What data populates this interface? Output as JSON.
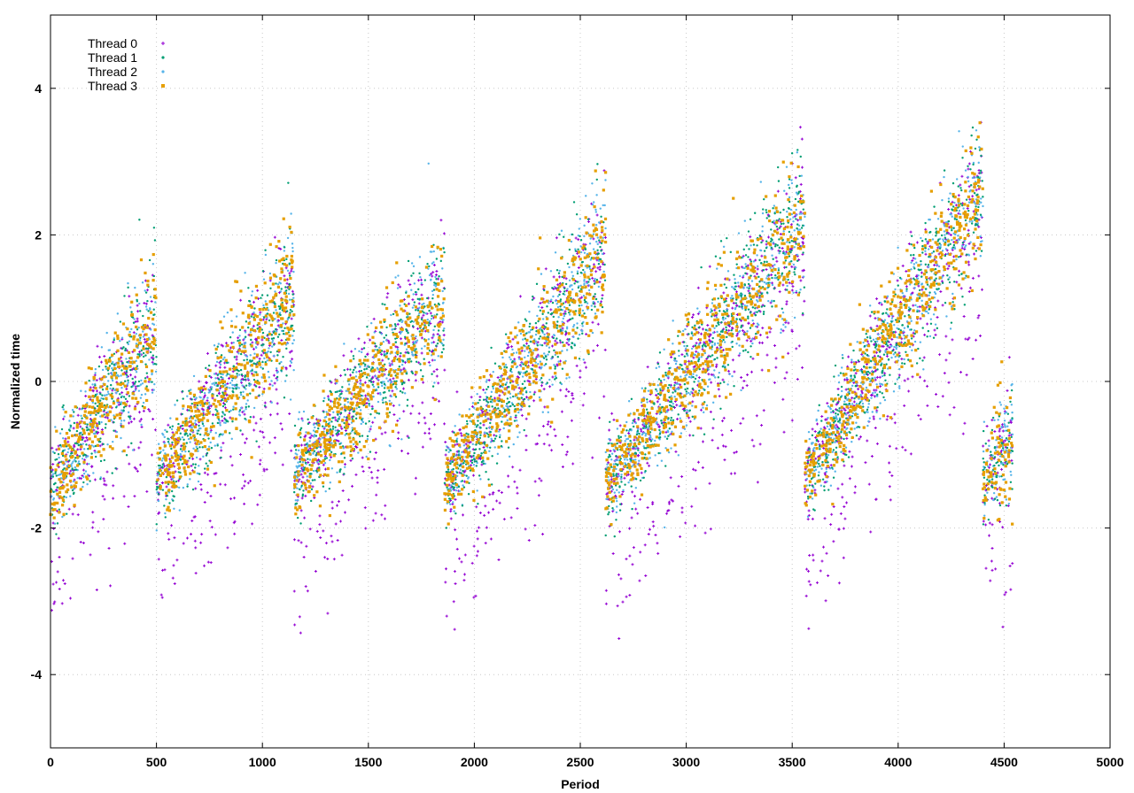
{
  "chart_data": {
    "type": "scatter",
    "title": "",
    "xlabel": "Period",
    "ylabel": "Normalized time",
    "xlim": [
      0,
      5000
    ],
    "ylim": [
      -5,
      5
    ],
    "xticks": [
      0,
      500,
      1000,
      1500,
      2000,
      2500,
      3000,
      3500,
      4000,
      4500,
      5000
    ],
    "yticks": [
      -4,
      -2,
      0,
      2,
      4
    ],
    "grid": true,
    "legend_position": "top-left",
    "cycles": [
      {
        "x_start": 0,
        "x_end": 500,
        "y_start": -1.5,
        "y_end": 0.8
      },
      {
        "x_start": 500,
        "x_end": 1150,
        "y_start": -1.4,
        "y_end": 1.2
      },
      {
        "x_start": 1150,
        "x_end": 1860,
        "y_start": -1.3,
        "y_end": 1.2
      },
      {
        "x_start": 1860,
        "x_end": 2620,
        "y_start": -1.4,
        "y_end": 1.8
      },
      {
        "x_start": 2620,
        "x_end": 3560,
        "y_start": -1.4,
        "y_end": 2.2
      },
      {
        "x_start": 3560,
        "x_end": 4400,
        "y_start": -1.3,
        "y_end": 2.6
      },
      {
        "x_start": 4400,
        "x_end": 4540,
        "y_start": -1.3,
        "y_end": -0.8
      }
    ],
    "series": [
      {
        "name": "Thread 0",
        "color": "#9400d3",
        "marker": "plus"
      },
      {
        "name": "Thread 1",
        "color": "#009e73",
        "marker": "dot"
      },
      {
        "name": "Thread 2",
        "color": "#56b4e9",
        "marker": "dot"
      },
      {
        "name": "Thread 3",
        "color": "#e69f00",
        "marker": "square"
      }
    ]
  }
}
